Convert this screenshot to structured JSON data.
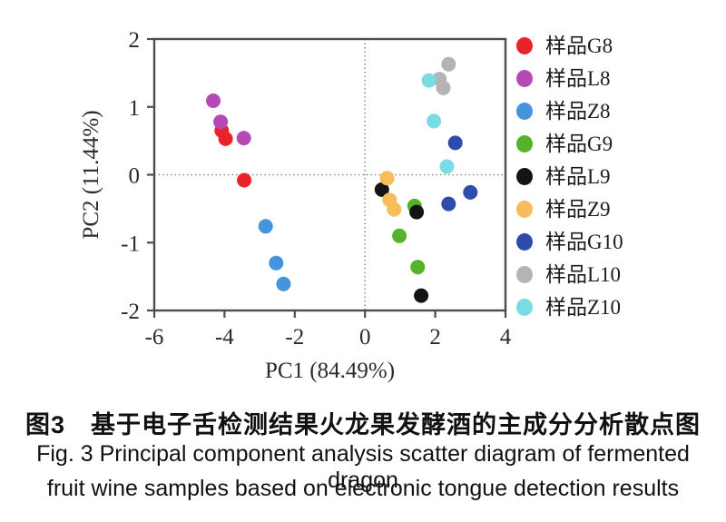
{
  "captions": {
    "chinese": "图3　基于电子舌检测结果火龙果发酵酒的主成分分析散点图",
    "english_line1": "Fig. 3 Principal component analysis scatter diagram of fermented dragon",
    "english_line2": "fruit wine samples based on electronic tongue detection results"
  },
  "chart_data": {
    "type": "scatter",
    "xlabel": "PC1 (84.49%)",
    "ylabel": "PC2 (11.44%)",
    "xlim": [
      -6,
      4
    ],
    "ylim": [
      -2,
      2
    ],
    "xticks": [
      -6,
      -4,
      -2,
      0,
      2,
      4
    ],
    "yticks": [
      2,
      1,
      0,
      -1,
      -2
    ],
    "grid": false,
    "reference_lines": {
      "x_zero_dotted": true,
      "y_zero_dotted": true
    },
    "legend_position": "right-outside",
    "axis_color": "#4d4d4d",
    "reference_line_color": "#7a7a7a",
    "marker_radius": 8,
    "series": [
      {
        "name": "样品G8",
        "color": "#e8242b",
        "points": [
          [
            -4.08,
            0.65
          ],
          [
            -3.97,
            0.53
          ],
          [
            -3.44,
            -0.08
          ]
        ]
      },
      {
        "name": "样品L8",
        "color": "#b54ab4",
        "points": [
          [
            -4.32,
            1.09
          ],
          [
            -4.11,
            0.78
          ],
          [
            -3.45,
            0.54
          ]
        ]
      },
      {
        "name": "样品Z8",
        "color": "#4594dc",
        "points": [
          [
            -2.83,
            -0.76
          ],
          [
            -2.53,
            -1.3
          ],
          [
            -2.32,
            -1.61
          ]
        ]
      },
      {
        "name": "样品G9",
        "color": "#53b32b",
        "points": [
          [
            1.41,
            -0.46
          ],
          [
            0.98,
            -0.9
          ],
          [
            1.5,
            -1.36
          ]
        ]
      },
      {
        "name": "样品L9",
        "color": "#141414",
        "points": [
          [
            0.48,
            -0.22
          ],
          [
            1.47,
            -0.55
          ],
          [
            1.6,
            -1.78
          ]
        ]
      },
      {
        "name": "样品Z9",
        "color": "#f7bd5a",
        "points": [
          [
            0.63,
            -0.05
          ],
          [
            0.7,
            -0.37
          ],
          [
            0.83,
            -0.51
          ]
        ]
      },
      {
        "name": "样品G10",
        "color": "#2e4bad",
        "points": [
          [
            2.57,
            0.47
          ],
          [
            2.38,
            -0.43
          ],
          [
            3.0,
            -0.26
          ]
        ]
      },
      {
        "name": "样品L10",
        "color": "#b4b4b4",
        "points": [
          [
            2.38,
            1.63
          ],
          [
            2.12,
            1.41
          ],
          [
            2.23,
            1.28
          ]
        ]
      },
      {
        "name": "样品Z10",
        "color": "#79dce2",
        "points": [
          [
            1.82,
            1.39
          ],
          [
            1.96,
            0.79
          ],
          [
            2.33,
            0.12
          ]
        ]
      }
    ]
  }
}
